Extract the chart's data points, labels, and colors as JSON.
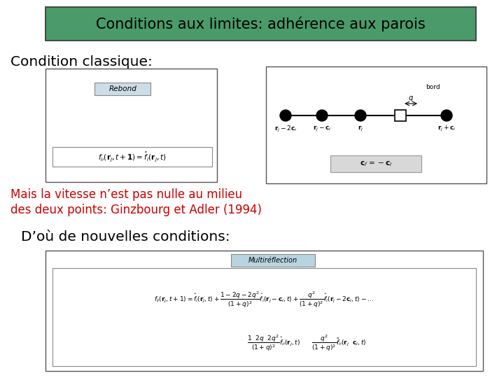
{
  "title": "Conditions aux limites: adhérence aux parois",
  "title_bg": "#4a9a6a",
  "title_color": "#000000",
  "bg_color": "#ffffff",
  "section1_label": "Condition classique:",
  "rebond_label": "Rebond",
  "red_text_line1": "Mais la vitesse n’est pas nulle au milieu",
  "red_text_line2": "des deux points: Ginzbourg et Adler (1994)",
  "red_color": "#cc0000",
  "section2_label": "D’où de nouvelles conditions:",
  "multireflection_label": "Multiréflection"
}
